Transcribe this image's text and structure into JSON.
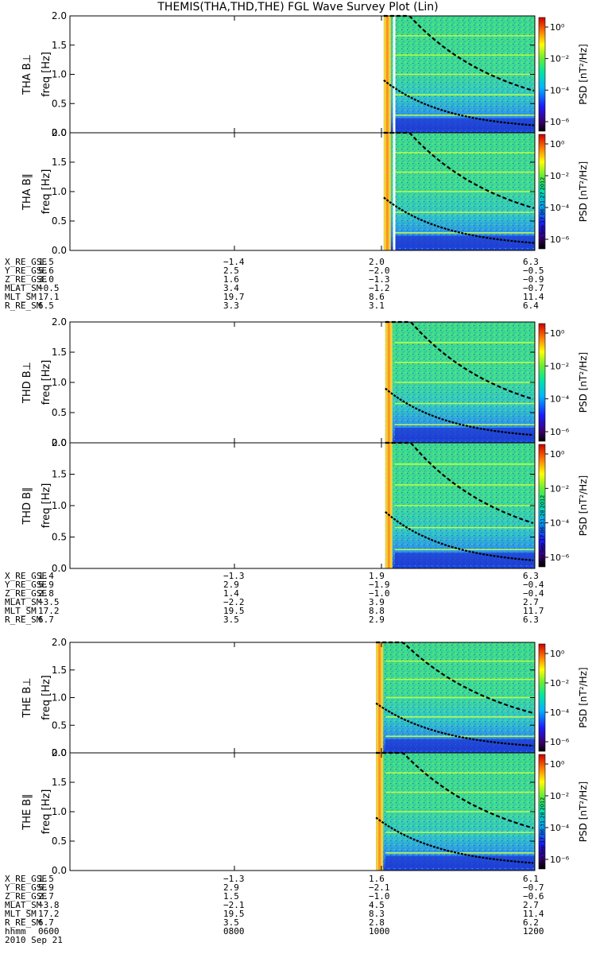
{
  "title": "THEMIS(THA,THD,THE) FGL Wave Survey Plot (Lin)",
  "colors": {
    "bg": "#ffffff",
    "curve": "#000000"
  },
  "x_ticks": [
    "0600",
    "0800",
    "1000",
    "1200"
  ],
  "date_label": "2010 Sep 21",
  "time_row_label": "hhmm",
  "chart_data": [
    {
      "type": "heatmap",
      "probe": "THA",
      "component": "perp",
      "ylabel_line1": "THA B⊥",
      "ylabel_line2": "freq [Hz]",
      "ylim": [
        0,
        2
      ],
      "yticks": [
        "0.0",
        "0.5",
        "1.0",
        "1.5",
        "2.0"
      ],
      "xrange_hours": [
        6,
        12
      ],
      "data_start_hour": 10.05,
      "gap": [
        10.17,
        10.2
      ],
      "colorbar_label": "PSD [nT²/Hz]",
      "colorbar_ticks": [
        "10⁰",
        "10⁻²",
        "10⁻⁴",
        "10⁻⁶"
      ],
      "stamp": ""
    },
    {
      "type": "heatmap",
      "probe": "THA",
      "component": "par",
      "ylabel_line1": "THA B∥",
      "ylabel_line2": "freq [Hz]",
      "ylim": [
        0,
        2
      ],
      "yticks": [
        "0.0",
        "0.5",
        "1.0",
        "1.5",
        "2.0"
      ],
      "xrange_hours": [
        6,
        12
      ],
      "data_start_hour": 10.05,
      "gap": [
        10.17,
        10.2
      ],
      "colorbar_label": "PSD [nT²/Hz]",
      "colorbar_ticks": [
        "10⁰",
        "10⁻²",
        "10⁻⁴",
        "10⁻⁶"
      ],
      "stamp": "Mon Sep 17 06:31:27 2012"
    },
    {
      "type": "heatmap",
      "probe": "THD",
      "component": "perp",
      "ylabel_line1": "THD B⊥",
      "ylabel_line2": "freq [Hz]",
      "ylim": [
        0,
        2
      ],
      "yticks": [
        "0.0",
        "0.5",
        "1.0",
        "1.5",
        "2.0"
      ],
      "xrange_hours": [
        6,
        12
      ],
      "data_start_hour": 10.07,
      "gap": null,
      "colorbar_label": "PSD [nT²/Hz]",
      "colorbar_ticks": [
        "10⁰",
        "10⁻²",
        "10⁻⁴",
        "10⁻⁶"
      ],
      "stamp": ""
    },
    {
      "type": "heatmap",
      "probe": "THD",
      "component": "par",
      "ylabel_line1": "THD B∥",
      "ylabel_line2": "freq [Hz]",
      "ylim": [
        0,
        2
      ],
      "yticks": [
        "0.0",
        "0.5",
        "1.0",
        "1.5",
        "2.0"
      ],
      "xrange_hours": [
        6,
        12
      ],
      "data_start_hour": 10.07,
      "gap": null,
      "colorbar_label": "PSD [nT²/Hz]",
      "colorbar_ticks": [
        "10⁰",
        "10⁻²",
        "10⁻⁴",
        "10⁻⁶"
      ],
      "stamp": "Mon Sep 17 06:31:28 2012"
    },
    {
      "type": "heatmap",
      "probe": "THE",
      "component": "perp",
      "ylabel_line1": "THE B⊥",
      "ylabel_line2": "freq [Hz]",
      "ylim": [
        0,
        2
      ],
      "yticks": [
        "0.0",
        "0.5",
        "1.0",
        "1.5",
        "2.0"
      ],
      "xrange_hours": [
        6,
        12
      ],
      "data_start_hour": 9.95,
      "gap": null,
      "colorbar_label": "PSD [nT²/Hz]",
      "colorbar_ticks": [
        "10⁰",
        "10⁻²",
        "10⁻⁴",
        "10⁻⁶"
      ],
      "stamp": ""
    },
    {
      "type": "heatmap",
      "probe": "THE",
      "component": "par",
      "ylabel_line1": "THE B∥",
      "ylabel_line2": "freq [Hz]",
      "ylim": [
        0,
        2
      ],
      "yticks": [
        "0.0",
        "0.5",
        "1.0",
        "1.5",
        "2.0"
      ],
      "xrange_hours": [
        6,
        12
      ],
      "data_start_hour": 9.95,
      "gap": null,
      "colorbar_label": "PSD [nT²/Hz]",
      "colorbar_ticks": [
        "10⁰",
        "10⁻²",
        "10⁻⁴",
        "10⁻⁶"
      ],
      "stamp": "Mon Sep 17 06:31:28 2012"
    }
  ],
  "ephemeris": [
    {
      "probe": "THA",
      "rows": [
        {
          "label": "X_RE_GSE",
          "values": [
            "1.5",
            "−1.4",
            "2.0",
            "6.3"
          ]
        },
        {
          "label": "Y_RE_GSE",
          "values": [
            "5.6",
            "2.5",
            "−2.0",
            "−0.5"
          ]
        },
        {
          "label": "Z_RE_GSE",
          "values": [
            "3.0",
            "1.6",
            "−1.3",
            "−0.9"
          ]
        },
        {
          "label": "MLAT_SM",
          "values": [
            "−0.5",
            "3.4",
            "−1.2",
            "−0.7"
          ]
        },
        {
          "label": "MLT_SM",
          "values": [
            "17.1",
            "19.7",
            "8.6",
            "11.4"
          ]
        },
        {
          "label": "R_RE_SM",
          "values": [
            "6.5",
            "3.3",
            "3.1",
            "6.4"
          ]
        }
      ]
    },
    {
      "probe": "THD",
      "rows": [
        {
          "label": "X_RE_GSE",
          "values": [
            "1.4",
            "−1.3",
            "1.9",
            "6.3"
          ]
        },
        {
          "label": "Y_RE_GSE",
          "values": [
            "5.9",
            "2.9",
            "−1.9",
            "−0.4"
          ]
        },
        {
          "label": "Z_RE_GSE",
          "values": [
            "2.8",
            "1.4",
            "−1.0",
            "−0.4"
          ]
        },
        {
          "label": "MLAT_SM",
          "values": [
            "−3.5",
            "−2.2",
            "3.9",
            "2.7"
          ]
        },
        {
          "label": "MLT_SM",
          "values": [
            "17.2",
            "19.5",
            "8.8",
            "11.7"
          ]
        },
        {
          "label": "R_RE_SM",
          "values": [
            "6.7",
            "3.5",
            "2.9",
            "6.3"
          ]
        }
      ]
    },
    {
      "probe": "THE",
      "rows": [
        {
          "label": "X_RE_GSE",
          "values": [
            "1.5",
            "−1.3",
            "1.6",
            "6.1"
          ]
        },
        {
          "label": "Y_RE_GSE",
          "values": [
            "5.9",
            "2.9",
            "−2.1",
            "−0.7"
          ]
        },
        {
          "label": "Z_RE_GSE",
          "values": [
            "2.7",
            "1.5",
            "−1.0",
            "−0.6"
          ]
        },
        {
          "label": "MLAT_SM",
          "values": [
            "−3.8",
            "−2.1",
            "4.5",
            "2.7"
          ]
        },
        {
          "label": "MLT_SM",
          "values": [
            "17.2",
            "19.5",
            "8.3",
            "11.4"
          ]
        },
        {
          "label": "R_RE_SM",
          "values": [
            "6.7",
            "3.5",
            "2.8",
            "6.2"
          ]
        }
      ]
    }
  ]
}
